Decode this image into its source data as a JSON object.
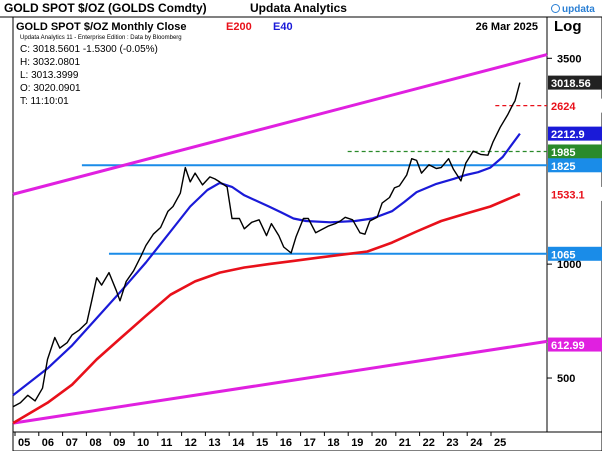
{
  "header": {
    "app_title": "GOLD SPOT $/OZ (GOLDS Comdty)",
    "provider": "Updata Analytics",
    "logo_text": "updata"
  },
  "chart_data": {
    "type": "line",
    "title": "GOLD SPOT $/OZ Monthly Close",
    "date": "26 Mar 2025",
    "scale": "log",
    "ylabel": "Log",
    "ylim": [
      360,
      4500
    ],
    "y_ticks": [
      {
        "v": 3500,
        "label": "3500"
      },
      {
        "v": 1000,
        "label": "1000"
      },
      {
        "v": 500,
        "label": "500"
      }
    ],
    "x_ticks": [
      "05",
      "06",
      "07",
      "08",
      "09",
      "10",
      "11",
      "12",
      "13",
      "14",
      "15",
      "16",
      "17",
      "18",
      "19",
      "20",
      "21",
      "22",
      "23",
      "24",
      "25"
    ],
    "xlim": [
      2004.6,
      2026.3
    ],
    "legend": [
      {
        "label": "E200",
        "color": "#e8101a"
      },
      {
        "label": "E40",
        "color": "#1a1ad8"
      }
    ],
    "stats": {
      "source": "Updata Analytics 11 - Enterprise Edition : Data by Bloomberg",
      "close": "C: 3018.5601  -1.5300 (-0.05%)",
      "high": "H: 3032.0801",
      "low": "L: 3013.3999",
      "open": "O: 3020.0901",
      "time": "T: 11:10:01"
    },
    "price_series": {
      "name": "Gold Spot",
      "color": "#000000",
      "x": [
        2004.6,
        2004.9,
        2005.2,
        2005.5,
        2005.8,
        2006.0,
        2006.3,
        2006.5,
        2006.8,
        2007.0,
        2007.3,
        2007.6,
        2007.8,
        2008.0,
        2008.2,
        2008.5,
        2008.8,
        2008.95,
        2009.2,
        2009.5,
        2009.8,
        2010.0,
        2010.3,
        2010.6,
        2010.9,
        2011.1,
        2011.4,
        2011.6,
        2011.8,
        2012.0,
        2012.3,
        2012.6,
        2012.8,
        2013.0,
        2013.3,
        2013.5,
        2013.8,
        2014.0,
        2014.3,
        2014.6,
        2014.9,
        2015.1,
        2015.4,
        2015.6,
        2015.9,
        2016.1,
        2016.4,
        2016.6,
        2016.9,
        2017.1,
        2017.4,
        2017.7,
        2017.9,
        2018.1,
        2018.4,
        2018.7,
        2018.9,
        2019.1,
        2019.4,
        2019.6,
        2019.9,
        2020.1,
        2020.3,
        2020.6,
        2020.8,
        2021.0,
        2021.2,
        2021.5,
        2021.8,
        2022.0,
        2022.3,
        2022.5,
        2022.8,
        2023.0,
        2023.3,
        2023.6,
        2023.9,
        2024.1,
        2024.4,
        2024.7,
        2024.9,
        2025.0,
        2025.2
      ],
      "y": [
        420,
        430,
        450,
        435,
        470,
        560,
        640,
        600,
        620,
        650,
        670,
        700,
        800,
        920,
        880,
        950,
        850,
        800,
        900,
        960,
        1050,
        1120,
        1200,
        1250,
        1380,
        1420,
        1540,
        1800,
        1650,
        1740,
        1620,
        1700,
        1680,
        1650,
        1600,
        1320,
        1320,
        1240,
        1290,
        1310,
        1190,
        1280,
        1190,
        1110,
        1070,
        1180,
        1320,
        1320,
        1210,
        1230,
        1260,
        1280,
        1300,
        1330,
        1310,
        1210,
        1200,
        1300,
        1330,
        1450,
        1500,
        1590,
        1610,
        1720,
        1900,
        1880,
        1740,
        1830,
        1790,
        1800,
        1900,
        1780,
        1660,
        1850,
        1990,
        1950,
        1940,
        2100,
        2300,
        2480,
        2630,
        2700,
        3018.56
      ]
    },
    "e40_series": {
      "name": "E40",
      "color": "#1a1ad8",
      "x": [
        2004.6,
        2006.0,
        2007.0,
        2008.0,
        2009.0,
        2010.0,
        2011.0,
        2011.8,
        2012.5,
        2013.0,
        2013.5,
        2014.0,
        2015.0,
        2015.5,
        2016.0,
        2016.5,
        2017.5,
        2018.5,
        2019.2,
        2020.0,
        2020.5,
        2021.0,
        2021.8,
        2022.5,
        2023.0,
        2023.5,
        2024.0,
        2024.5,
        2025.2
      ],
      "y": [
        450,
        530,
        610,
        720,
        850,
        1010,
        1220,
        1420,
        1570,
        1640,
        1600,
        1520,
        1420,
        1370,
        1320,
        1300,
        1290,
        1300,
        1320,
        1380,
        1460,
        1550,
        1630,
        1680,
        1720,
        1750,
        1800,
        1920,
        2212.9
      ]
    },
    "e200_series": {
      "name": "E200",
      "color": "#e8101a",
      "x": [
        2004.6,
        2006.0,
        2007.0,
        2008.0,
        2009.0,
        2010.0,
        2011.0,
        2012.0,
        2013.0,
        2014.0,
        2015.0,
        2016.0,
        2017.0,
        2018.0,
        2019.0,
        2020.0,
        2021.0,
        2022.0,
        2023.0,
        2024.0,
        2025.2
      ],
      "y": [
        380,
        430,
        480,
        560,
        640,
        730,
        830,
        900,
        950,
        980,
        1000,
        1020,
        1040,
        1060,
        1080,
        1140,
        1220,
        1300,
        1360,
        1420,
        1533.1
      ]
    },
    "channel_top": {
      "color": "#e020e0",
      "x": [
        2004.6,
        2026.3
      ],
      "y": [
        1530,
        3580
      ]
    },
    "channel_bottom": {
      "color": "#e020e0",
      "x": [
        2004.6,
        2026.3
      ],
      "y": [
        380,
        625
      ]
    },
    "hlines": [
      {
        "name": "resistance-1825",
        "color": "#1a8ce8",
        "style": "solid",
        "x": [
          2007.4,
          2026.3
        ],
        "value": 1825
      },
      {
        "name": "support-1065",
        "color": "#1a8ce8",
        "style": "solid",
        "x": [
          2008.5,
          2026.3
        ],
        "value": 1065
      },
      {
        "name": "level-1985",
        "color": "#2a8a2a",
        "style": "dashed",
        "x": [
          2018.2,
          2026.3
        ],
        "value": 1985
      },
      {
        "name": "level-2624",
        "color": "#e8101a",
        "style": "dashed",
        "x": [
          2024.2,
          2026.3
        ],
        "value": 2624
      }
    ],
    "right_labels": [
      {
        "value": 3018.56,
        "text": "3018.56",
        "bg": "#222222",
        "fg": "#ffffff"
      },
      {
        "value": 2624,
        "text": "2624",
        "bg": "#ffffff",
        "fg": "#e8101a"
      },
      {
        "value": 2212.9,
        "text": "2212.9",
        "bg": "#1a1ad8",
        "fg": "#ffffff"
      },
      {
        "value": 1985,
        "text": "1985",
        "bg": "#2a8a2a",
        "fg": "#ffffff"
      },
      {
        "value": 1825,
        "text": "1825",
        "bg": "#1a8ce8",
        "fg": "#ffffff"
      },
      {
        "value": 1533.1,
        "text": "1533.1",
        "bg": "#ffffff",
        "fg": "#e8101a"
      },
      {
        "value": 1065,
        "text": "1065",
        "bg": "#1a8ce8",
        "fg": "#ffffff"
      },
      {
        "value": 612.99,
        "text": "612.99",
        "bg": "#e020e0",
        "fg": "#ffffff"
      }
    ]
  }
}
